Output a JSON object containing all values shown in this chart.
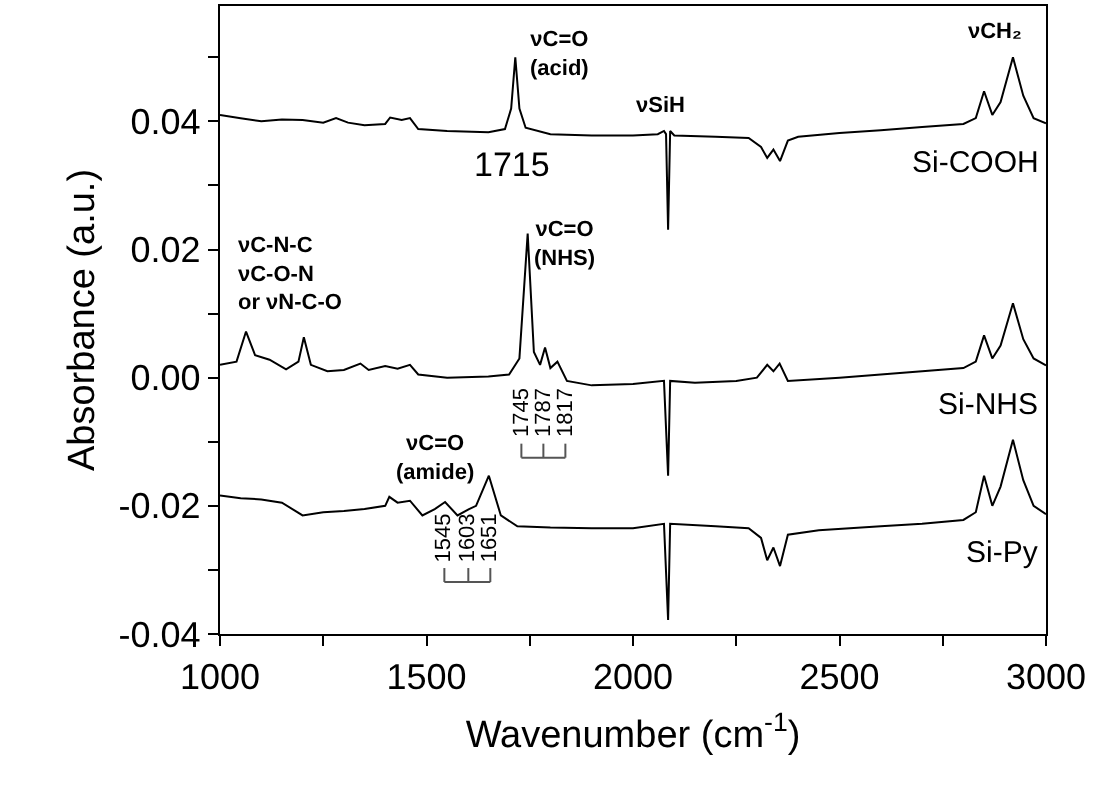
{
  "chart_data": {
    "type": "line",
    "xlabel": "Wavenumber (cm$^{-1}$)",
    "ylabel": "Absorbance (a.u.)",
    "xlim": [
      1000,
      3000
    ],
    "xticks": [
      1000,
      {
        "value": 1250,
        "label": null
      },
      1500,
      {
        "value": 1750,
        "label": null
      },
      2000,
      {
        "value": 2250,
        "label": null
      },
      2500,
      {
        "value": 2750,
        "label": null
      },
      3000
    ],
    "ylim": [
      -0.04,
      0.058
    ],
    "yticks": [
      {
        "value": -0.04,
        "label": "-0.04"
      },
      {
        "value": -0.03,
        "label": null
      },
      {
        "value": -0.02,
        "label": "-0.02"
      },
      {
        "value": -0.01,
        "label": null
      },
      {
        "value": 0.0,
        "label": "0.00"
      },
      {
        "value": 0.01,
        "label": null
      },
      {
        "value": 0.02,
        "label": "0.02"
      },
      {
        "value": 0.03,
        "label": null
      },
      {
        "value": 0.04,
        "label": "0.04"
      },
      {
        "value": 0.05,
        "label": null
      }
    ],
    "legend": false,
    "series": [
      {
        "name": "Si-COOH",
        "color": "#000000",
        "x": [
          1000,
          1050,
          1100,
          1150,
          1200,
          1250,
          1281,
          1310,
          1350,
          1400,
          1412,
          1440,
          1460,
          1480,
          1550,
          1650,
          1690,
          1705,
          1715,
          1725,
          1740,
          1800,
          1900,
          2000,
          2060,
          2075,
          2080,
          2085,
          2090,
          2100,
          2200,
          2280,
          2310,
          2325,
          2340,
          2356,
          2375,
          2400,
          2500,
          2600,
          2700,
          2800,
          2830,
          2850,
          2870,
          2890,
          2920,
          2945,
          2970,
          3000
        ],
        "values": [
          0.041,
          0.0405,
          0.04,
          0.0403,
          0.0402,
          0.0398,
          0.0405,
          0.0398,
          0.0394,
          0.0396,
          0.0406,
          0.0402,
          0.0405,
          0.0388,
          0.0385,
          0.0383,
          0.0388,
          0.042,
          0.05,
          0.042,
          0.039,
          0.038,
          0.0378,
          0.0378,
          0.038,
          0.0385,
          0.038,
          0.0231,
          0.0385,
          0.0378,
          0.0376,
          0.0374,
          0.036,
          0.0343,
          0.0356,
          0.0338,
          0.037,
          0.0376,
          0.0382,
          0.0386,
          0.0391,
          0.0396,
          0.0405,
          0.0447,
          0.041,
          0.043,
          0.05,
          0.044,
          0.0405,
          0.0397
        ]
      },
      {
        "name": "Si-NHS",
        "color": "#000000",
        "x": [
          1000,
          1040,
          1063,
          1085,
          1120,
          1160,
          1190,
          1203,
          1220,
          1260,
          1300,
          1340,
          1360,
          1400,
          1430,
          1460,
          1480,
          1550,
          1650,
          1700,
          1725,
          1745,
          1760,
          1775,
          1787,
          1800,
          1817,
          1840,
          1900,
          2000,
          2075,
          2085,
          2090,
          2150,
          2250,
          2300,
          2325,
          2340,
          2355,
          2375,
          2500,
          2600,
          2700,
          2800,
          2830,
          2850,
          2870,
          2890,
          2920,
          2945,
          2970,
          3000
        ],
        "values": [
          0.002,
          0.0025,
          0.0072,
          0.0035,
          0.0028,
          0.0013,
          0.0025,
          0.0063,
          0.002,
          0.001,
          0.0012,
          0.0022,
          0.0012,
          0.0018,
          0.0014,
          0.002,
          0.0005,
          0.0,
          0.0002,
          0.0005,
          0.003,
          0.0225,
          0.004,
          0.002,
          0.0047,
          0.0015,
          0.0025,
          -0.0005,
          -0.0012,
          -0.001,
          -0.0005,
          -0.0153,
          -0.0005,
          -0.0008,
          -0.0005,
          0.0,
          0.002,
          0.001,
          0.0022,
          -0.0005,
          0.0,
          0.0005,
          0.001,
          0.0015,
          0.0025,
          0.0066,
          0.003,
          0.005,
          0.0116,
          0.006,
          0.003,
          0.0019
        ]
      },
      {
        "name": "Si-Py",
        "color": "#000000",
        "x": [
          1000,
          1050,
          1100,
          1150,
          1200,
          1250,
          1300,
          1350,
          1400,
          1410,
          1430,
          1460,
          1490,
          1520,
          1545,
          1575,
          1603,
          1620,
          1651,
          1680,
          1720,
          1800,
          1900,
          2000,
          2075,
          2085,
          2090,
          2200,
          2280,
          2310,
          2325,
          2340,
          2356,
          2375,
          2450,
          2600,
          2700,
          2800,
          2830,
          2850,
          2870,
          2890,
          2920,
          2945,
          2970,
          3000
        ],
        "values": [
          -0.0184,
          -0.0188,
          -0.019,
          -0.0195,
          -0.0215,
          -0.021,
          -0.0208,
          -0.0205,
          -0.02,
          -0.0186,
          -0.0195,
          -0.0192,
          -0.0215,
          -0.0205,
          -0.0194,
          -0.0215,
          -0.0205,
          -0.02,
          -0.0153,
          -0.0215,
          -0.0232,
          -0.0234,
          -0.0235,
          -0.0235,
          -0.0228,
          -0.0378,
          -0.0228,
          -0.0232,
          -0.0235,
          -0.025,
          -0.0285,
          -0.0265,
          -0.0294,
          -0.0245,
          -0.0238,
          -0.0232,
          -0.0228,
          -0.0222,
          -0.021,
          -0.0153,
          -0.02,
          -0.017,
          -0.0097,
          -0.016,
          -0.02,
          -0.0213
        ]
      }
    ],
    "annotations": [
      {
        "text": "νC=O\n(acid)",
        "x": 1715,
        "y": 0.05
      },
      {
        "text": "1715",
        "x": 1715,
        "y": 0.05
      },
      {
        "text": "νSiH",
        "x": 2080,
        "y": 0.038
      },
      {
        "text": "νCH₂",
        "x": 2920,
        "y": 0.05
      },
      {
        "text": "νC-N-C\nνC-O-N\nor νN-C-O",
        "x": 1063,
        "y": 0.0072
      },
      {
        "text": "νC=O\n(NHS)",
        "x": 1745,
        "y": 0.0225
      },
      {
        "text": "1745",
        "x": 1745,
        "y": 0.0025
      },
      {
        "text": "1787",
        "x": 1787,
        "y": 0.0025
      },
      {
        "text": "1817",
        "x": 1817,
        "y": 0.0025
      },
      {
        "text": "νC=O\n(amide)",
        "x": 1651,
        "y": -0.0153
      },
      {
        "text": "1545",
        "x": 1545,
        "y": -0.0194
      },
      {
        "text": "1603",
        "x": 1603,
        "y": -0.0205
      },
      {
        "text": "1651",
        "x": 1651,
        "y": -0.0153
      }
    ]
  }
}
